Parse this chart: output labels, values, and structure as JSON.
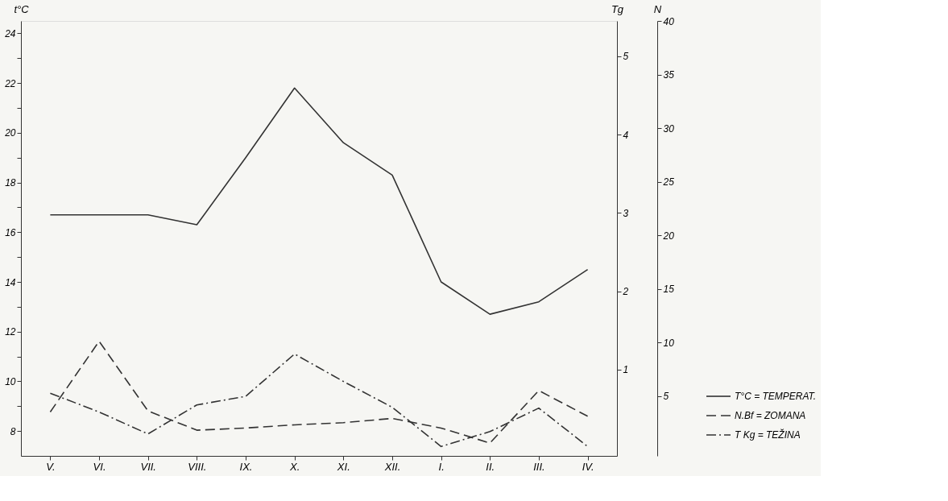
{
  "chart_data": {
    "type": "line",
    "ylabel": "t°C",
    "y2label": "Tg",
    "y3label": "N",
    "categories": [
      "V.",
      "VI.",
      "VII.",
      "VIII.",
      "IX.",
      "X.",
      "XI.",
      "XII.",
      "I.",
      "II.",
      "III.",
      "IV."
    ],
    "series": [
      {
        "name": "T°C = TEMPERAT.",
        "color": "#333333",
        "line_style": "solid",
        "values": [
          16.7,
          16.7,
          16.7,
          16.3,
          19.0,
          21.8,
          19.6,
          18.3,
          14.0,
          12.7,
          13.2,
          14.5
        ]
      },
      {
        "name": "N.Bf = ZOMANA",
        "color": "#333333",
        "line_style": "dashed",
        "axis": "y3",
        "values": [
          3.5,
          10.1,
          3.6,
          1.8,
          2.0,
          2.3,
          2.5,
          2.9,
          2.0,
          0.6,
          5.5,
          3.1
        ]
      },
      {
        "name": "T Kg = TEŽINA",
        "color": "#333333",
        "line_style": "dashdot",
        "axis": "y2",
        "values": [
          0.7,
          0.46,
          0.18,
          0.55,
          0.66,
          1.2,
          0.85,
          0.52,
          0.02,
          0.21,
          0.51,
          0.02
        ]
      }
    ],
    "ylim": [
      7,
      24.5
    ],
    "yticks": [
      8,
      {
        "value": 9,
        "label": null
      },
      10,
      {
        "value": 11,
        "label": null
      },
      12,
      {
        "value": 13,
        "label": null
      },
      14,
      {
        "value": 15,
        "label": null
      },
      16,
      {
        "value": 17,
        "label": null
      },
      18,
      {
        "value": 19,
        "label": null
      },
      20,
      {
        "value": 21,
        "label": null
      },
      22,
      {
        "value": 23,
        "label": null
      },
      24
    ],
    "y2lim": [
      -0.1,
      5.45
    ],
    "y2ticks": [
      1,
      2,
      3,
      4,
      5
    ],
    "y3lim": [
      -0.6,
      40
    ],
    "y3ticks": [
      5,
      10,
      15,
      20,
      25,
      30,
      35,
      40
    ],
    "grid": false,
    "legend": "bottom right"
  }
}
